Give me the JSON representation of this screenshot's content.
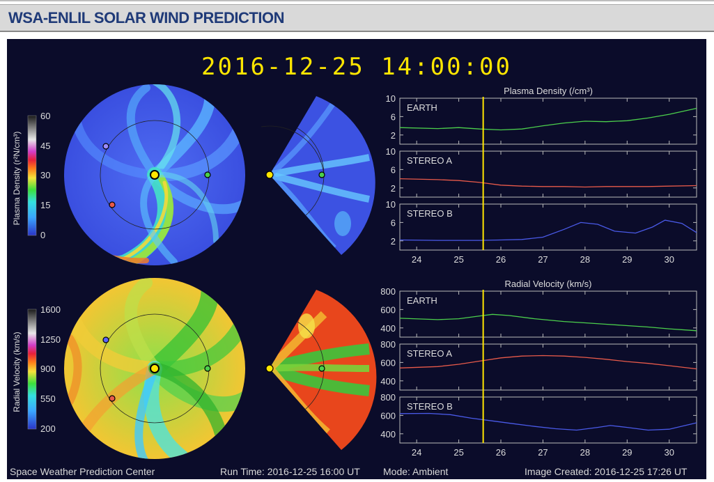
{
  "page_title": "WSA-ENLIL SOLAR WIND PREDICTION",
  "datetime": "2016-12-25 14:00:00",
  "colorbars": [
    {
      "label": "Plasma Density (r²N/cm³)",
      "ticks": [
        "60",
        "45",
        "30",
        "15",
        "0"
      ]
    },
    {
      "label": "Radial Velocity (km/s)",
      "ticks": [
        "1600",
        "1250",
        "900",
        "550",
        "200"
      ]
    }
  ],
  "footer": {
    "org": "Space Weather Prediction Center",
    "run_time": "Run Time: 2016-12-25 16:00 UT",
    "mode": "Mode: Ambient",
    "created": "Image Created: 2016-12-25 17:26 UT"
  },
  "colors": {
    "earth": "#4cd04c",
    "stereo_a": "#e85a4a",
    "stereo_b": "#4a5ae8",
    "marker": "#ffe600"
  },
  "chart_data": [
    {
      "type": "line",
      "title": "Plasma Density (/cm³)",
      "xlabel": "",
      "x_ticks": [
        "24",
        "25",
        "26",
        "27",
        "28",
        "29",
        "30"
      ],
      "xlim": [
        23.6,
        30.65
      ],
      "current_time": 25.58,
      "panels": [
        {
          "name": "EARTH",
          "ylim": [
            0,
            10
          ],
          "yticks": [
            "10",
            "6",
            "2"
          ],
          "x": [
            23.6,
            24.5,
            25.0,
            25.5,
            26.0,
            26.5,
            27.0,
            27.5,
            28.0,
            28.5,
            29.0,
            29.5,
            30.0,
            30.65
          ],
          "y": [
            3.6,
            3.4,
            3.6,
            3.3,
            3.1,
            3.3,
            4.0,
            4.6,
            5.0,
            4.9,
            5.1,
            5.7,
            6.5,
            7.8
          ]
        },
        {
          "name": "STEREO A",
          "ylim": [
            0,
            10
          ],
          "yticks": [
            "10",
            "6",
            "2"
          ],
          "x": [
            23.6,
            24.5,
            25.0,
            25.5,
            26.0,
            26.5,
            27.0,
            27.5,
            28.0,
            28.5,
            29.0,
            29.5,
            30.0,
            30.65
          ],
          "y": [
            4.0,
            3.8,
            3.6,
            3.2,
            2.6,
            2.4,
            2.3,
            2.3,
            2.2,
            2.3,
            2.3,
            2.3,
            2.4,
            2.5
          ]
        },
        {
          "name": "STEREO B",
          "ylim": [
            0,
            10
          ],
          "yticks": [
            "10",
            "6",
            "2"
          ],
          "x": [
            23.6,
            24.5,
            25.0,
            25.5,
            26.0,
            26.5,
            27.0,
            27.5,
            27.9,
            28.3,
            28.7,
            29.2,
            29.6,
            29.9,
            30.3,
            30.65
          ],
          "y": [
            2.2,
            2.1,
            2.1,
            2.1,
            2.2,
            2.3,
            2.8,
            4.5,
            6.0,
            5.6,
            4.1,
            3.7,
            5.0,
            6.5,
            5.8,
            3.8
          ]
        }
      ]
    },
    {
      "type": "line",
      "title": "Radial Velocity (km/s)",
      "xlabel": "",
      "x_ticks": [
        "24",
        "25",
        "26",
        "27",
        "28",
        "29",
        "30"
      ],
      "xlim": [
        23.6,
        30.65
      ],
      "current_time": 25.58,
      "panels": [
        {
          "name": "EARTH",
          "ylim": [
            300,
            800
          ],
          "yticks": [
            "800",
            "600",
            "400"
          ],
          "x": [
            23.6,
            24.5,
            25.0,
            25.5,
            25.8,
            26.2,
            26.8,
            27.5,
            28.0,
            28.5,
            29.0,
            29.5,
            30.0,
            30.65
          ],
          "y": [
            505,
            490,
            500,
            530,
            548,
            535,
            500,
            470,
            455,
            440,
            425,
            410,
            390,
            370
          ]
        },
        {
          "name": "STEREO A",
          "ylim": [
            300,
            800
          ],
          "yticks": [
            "800",
            "600",
            "400"
          ],
          "x": [
            23.6,
            24.5,
            25.0,
            25.5,
            26.0,
            26.5,
            27.0,
            27.5,
            28.0,
            28.5,
            29.0,
            29.5,
            30.0,
            30.65
          ],
          "y": [
            540,
            555,
            580,
            615,
            650,
            670,
            675,
            670,
            655,
            635,
            610,
            590,
            565,
            530
          ]
        },
        {
          "name": "STEREO B",
          "ylim": [
            300,
            800
          ],
          "yticks": [
            "800",
            "600",
            "400"
          ],
          "x": [
            23.6,
            24.3,
            24.8,
            25.3,
            25.8,
            26.3,
            26.8,
            27.3,
            27.8,
            28.3,
            28.6,
            29.0,
            29.5,
            30.0,
            30.65
          ],
          "y": [
            620,
            622,
            608,
            570,
            540,
            510,
            480,
            455,
            440,
            470,
            490,
            470,
            440,
            450,
            520
          ]
        }
      ]
    }
  ]
}
